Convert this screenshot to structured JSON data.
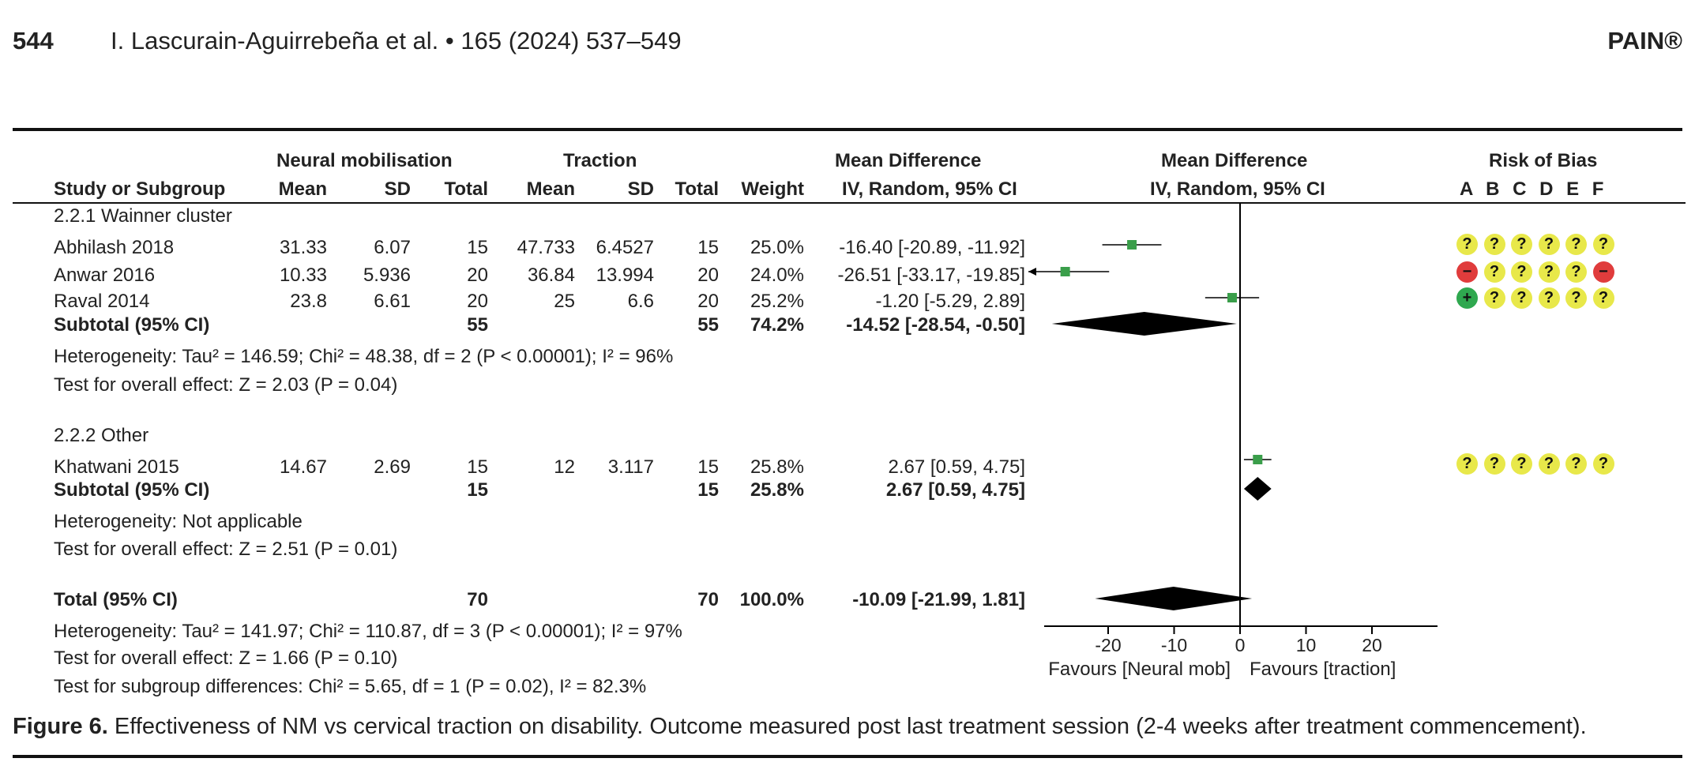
{
  "header": {
    "page_number": "544",
    "citation": "I. Lascurain-Aguirrebeña et al. • 165 (2024) 537–549",
    "journal": "PAIN®"
  },
  "table": {
    "group_headers": {
      "neural": "Neural mobilisation",
      "traction": "Traction",
      "md_left": "Mean Difference",
      "md_right": "Mean Difference",
      "rob": "Risk of Bias"
    },
    "columns": {
      "study": "Study or Subgroup",
      "mean1": "Mean",
      "sd1": "SD",
      "total1": "Total",
      "mean2": "Mean",
      "sd2": "SD",
      "total2": "Total",
      "weight": "Weight",
      "md_method": "IV, Random, 95% CI",
      "md_method_plot": "IV, Random, 95% CI",
      "rob_letters": "A B C D E F"
    },
    "subgroup1": {
      "title": "2.2.1 Wainner cluster",
      "studies": [
        {
          "name": "Abhilash 2018",
          "mean1": "31.33",
          "sd1": "6.07",
          "n1": "15",
          "mean2": "47.733",
          "sd2": "6.4527",
          "n2": "15",
          "weight": "25.0%",
          "ci": "-16.40 [-20.89, -11.92]"
        },
        {
          "name": "Anwar 2016",
          "mean1": "10.33",
          "sd1": "5.936",
          "n1": "20",
          "mean2": "36.84",
          "sd2": "13.994",
          "n2": "20",
          "weight": "24.0%",
          "ci": "-26.51 [-33.17, -19.85]"
        },
        {
          "name": "Raval 2014",
          "mean1": "23.8",
          "sd1": "6.61",
          "n1": "20",
          "mean2": "25",
          "sd2": "6.6",
          "n2": "20",
          "weight": "25.2%",
          "ci": "-1.20 [-5.29, 2.89]"
        }
      ],
      "subtotal": {
        "label": "Subtotal (95% CI)",
        "n1": "55",
        "n2": "55",
        "weight": "74.2%",
        "ci": "-14.52 [-28.54, -0.50]"
      },
      "heterogeneity": "Heterogeneity: Tau² = 146.59; Chi² = 48.38, df = 2 (P < 0.00001); I² = 96%",
      "overall": "Test for overall effect: Z = 2.03 (P = 0.04)"
    },
    "subgroup2": {
      "title": "2.2.2 Other",
      "studies": [
        {
          "name": "Khatwani 2015",
          "mean1": "14.67",
          "sd1": "2.69",
          "n1": "15",
          "mean2": "12",
          "sd2": "3.117",
          "n2": "15",
          "weight": "25.8%",
          "ci": "2.67 [0.59, 4.75]"
        }
      ],
      "subtotal": {
        "label": "Subtotal (95% CI)",
        "n1": "15",
        "n2": "15",
        "weight": "25.8%",
        "ci": "2.67 [0.59, 4.75]"
      },
      "heterogeneity": "Heterogeneity: Not applicable",
      "overall": "Test for overall effect: Z = 2.51 (P = 0.01)"
    },
    "total": {
      "label": "Total (95% CI)",
      "n1": "70",
      "n2": "70",
      "weight": "100.0%",
      "ci": "-10.09 [-21.99, 1.81]"
    },
    "footer": {
      "heterogeneity": "Heterogeneity: Tau² = 141.97; Chi² = 110.87, df = 3 (P < 0.00001); I² = 97%",
      "overall": "Test for overall effect: Z = 1.66 (P = 0.10)",
      "subgroup_diff": "Test for subgroup differences: Chi² = 5.65, df = 1 (P = 0.02), I² = 82.3%"
    }
  },
  "chart_data": {
    "type": "forest",
    "xlim": [
      -30,
      30
    ],
    "ticks": [
      "-20",
      "-10",
      "0",
      "10",
      "20"
    ],
    "tick_values": [
      -20,
      -10,
      0,
      10,
      20
    ],
    "favours_left": "Favours [Neural mob]",
    "favours_right": "Favours [traction]",
    "studies": [
      {
        "name": "Abhilash 2018",
        "md": -16.4,
        "lo": -20.89,
        "hi": -11.92
      },
      {
        "name": "Anwar 2016",
        "md": -26.51,
        "lo": -33.17,
        "hi": -19.85
      },
      {
        "name": "Raval 2014",
        "md": -1.2,
        "lo": -5.29,
        "hi": 2.89
      },
      {
        "name": "Khatwani 2015",
        "md": 2.67,
        "lo": 0.59,
        "hi": 4.75
      }
    ],
    "pooled": [
      {
        "name": "Subtotal Wainner cluster",
        "md": -14.52,
        "lo": -28.54,
        "hi": -0.5
      },
      {
        "name": "Subtotal Other",
        "md": 2.67,
        "lo": 0.59,
        "hi": 4.75
      },
      {
        "name": "Total",
        "md": -10.09,
        "lo": -21.99,
        "hi": 1.81
      }
    ],
    "colors": {
      "study_marker": "#3a9e4a",
      "diamond": "#000000"
    }
  },
  "risk_of_bias": {
    "colors": {
      "unclear": "#e8e84a",
      "high": "#e03c3c",
      "low": "#2fa84f"
    },
    "rows": [
      {
        "study": "Abhilash 2018",
        "judgements": [
          "unclear",
          "unclear",
          "unclear",
          "unclear",
          "unclear",
          "unclear"
        ],
        "symbols": [
          "?",
          "?",
          "?",
          "?",
          "?",
          "?"
        ]
      },
      {
        "study": "Anwar 2016",
        "judgements": [
          "high",
          "unclear",
          "unclear",
          "unclear",
          "unclear",
          "high"
        ],
        "symbols": [
          "−",
          "?",
          "?",
          "?",
          "?",
          "−"
        ]
      },
      {
        "study": "Raval 2014",
        "judgements": [
          "low",
          "unclear",
          "unclear",
          "unclear",
          "unclear",
          "unclear"
        ],
        "symbols": [
          "+",
          "?",
          "?",
          "?",
          "?",
          "?"
        ]
      },
      {
        "study": "Khatwani 2015",
        "judgements": [
          "unclear",
          "unclear",
          "unclear",
          "unclear",
          "unclear",
          "unclear"
        ],
        "symbols": [
          "?",
          "?",
          "?",
          "?",
          "?",
          "?"
        ]
      }
    ]
  },
  "caption": {
    "label": "Figure 6.",
    "text": " Effectiveness of NM vs cervical traction on disability. Outcome measured post last treatment session (2-4 weeks after treatment commencement)."
  }
}
